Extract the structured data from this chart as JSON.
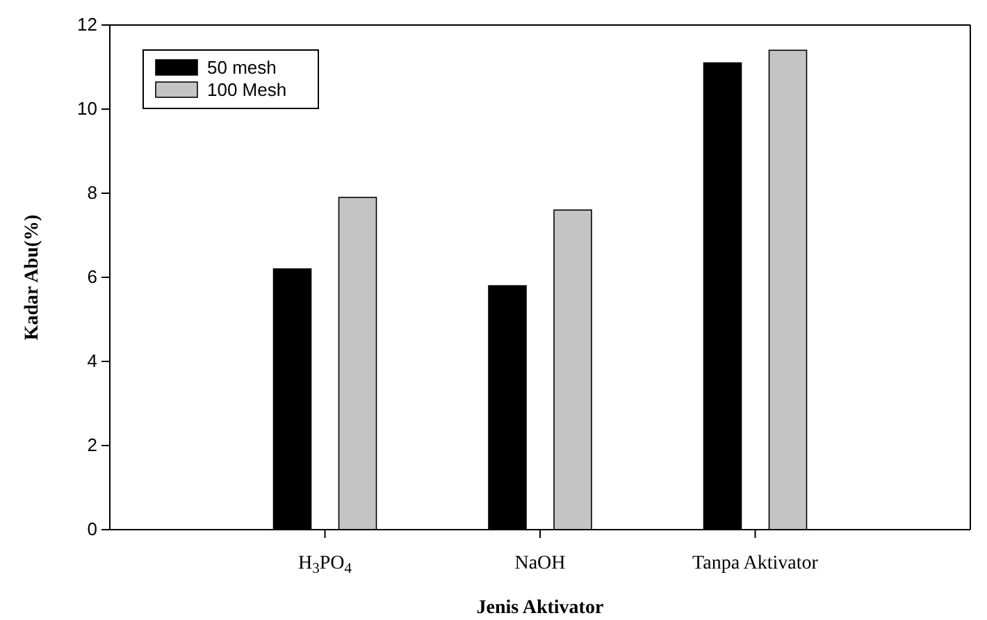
{
  "chart_data": {
    "type": "bar",
    "xlabel": "Jenis Aktivator",
    "ylabel": "Kadar Abu(%)",
    "categories": [
      "H$_{3}$PO$_{4}$",
      "NaOH",
      "Tanpa Aktivator"
    ],
    "series": [
      {
        "name": "50 mesh",
        "color": "#000000",
        "values": [
          6.2,
          5.8,
          11.1
        ]
      },
      {
        "name": "100 Mesh",
        "color": "#c4c4c4",
        "values": [
          7.9,
          7.6,
          11.4
        ]
      }
    ],
    "ylim": [
      0,
      12
    ],
    "yticks": [
      0,
      2,
      4,
      6,
      8,
      10,
      12
    ],
    "grid": false,
    "legend": "top left"
  }
}
